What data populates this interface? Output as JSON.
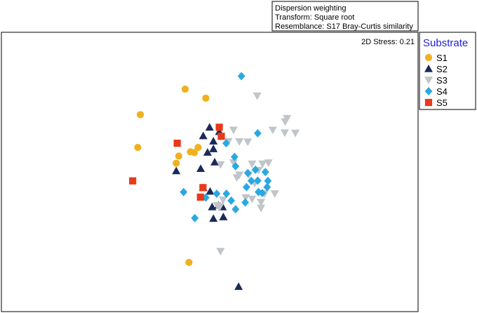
{
  "chart_data": {
    "type": "scatter",
    "title": "",
    "xlabel": "",
    "ylabel": "",
    "info_box": [
      "Dispersion weighting",
      "Transform: Square root",
      "Resemblance: S17 Bray-Curtis similarity"
    ],
    "stress_label": "2D Stress: 0.21",
    "legend_title": "Substrate",
    "legend_title_color": "#1f1fd6",
    "legend_placement": "right",
    "grid": false,
    "xlim": [
      0,
      100
    ],
    "ylim": [
      0,
      100
    ],
    "series": [
      {
        "name": "S1",
        "marker": "circle",
        "color": "#f0b020",
        "points": [
          [
            40.2,
            85.2
          ],
          [
            48.3,
            81.3
          ],
          [
            22.6,
            74.2
          ],
          [
            21.6,
            60.1
          ],
          [
            45.3,
            60.1
          ],
          [
            43.8,
            57.9
          ],
          [
            42.3,
            58.2
          ],
          [
            37.7,
            56.4
          ],
          [
            36.7,
            53.3
          ],
          [
            41.7,
            10.6
          ]
        ]
      },
      {
        "name": "S2",
        "marker": "triangle-up",
        "color": "#1a2a5a",
        "points": [
          [
            49.8,
            68.8
          ],
          [
            47.3,
            65.1
          ],
          [
            53.6,
            66.9
          ],
          [
            51.3,
            62.8
          ],
          [
            51.3,
            59.5
          ],
          [
            49.0,
            58.0
          ],
          [
            46.3,
            51.0
          ],
          [
            36.7,
            50.0
          ],
          [
            51.8,
            53.8
          ],
          [
            47.3,
            42.8
          ],
          [
            50.0,
            41.2
          ],
          [
            53.3,
            35.2
          ],
          [
            54.9,
            34.5
          ],
          [
            55.2,
            30.2
          ],
          [
            51.3,
            29.5
          ],
          [
            50.8,
            34.5
          ],
          [
            61.2,
            0.2
          ]
        ]
      },
      {
        "name": "S3",
        "marker": "triangle-down",
        "color": "#bfc5c9",
        "points": [
          [
            68.5,
            82.3
          ],
          [
            80.2,
            72.6
          ],
          [
            74.6,
            67.6
          ],
          [
            83.5,
            66.3
          ],
          [
            59.2,
            67.6
          ],
          [
            61.5,
            62.6
          ],
          [
            64.8,
            62.5
          ],
          [
            57.2,
            62.7
          ],
          [
            54.1,
            52.7
          ],
          [
            60.5,
            47.1
          ],
          [
            69.0,
            50.3
          ],
          [
            70.6,
            53.0
          ],
          [
            66.5,
            53.0
          ],
          [
            72.9,
            53.5
          ],
          [
            59.2,
            53.5
          ],
          [
            65.2,
            48.3
          ],
          [
            61.5,
            48.3
          ],
          [
            67.5,
            44.6
          ],
          [
            71.4,
            40.2
          ],
          [
            64.0,
            38.5
          ],
          [
            66.5,
            37.9
          ],
          [
            55.1,
            37.5
          ],
          [
            53.8,
            34.5
          ],
          [
            52.8,
            35.1
          ],
          [
            70.0,
            36.5
          ],
          [
            75.4,
            40.2
          ],
          [
            79.5,
            71.2
          ],
          [
            79.3,
            66.4
          ],
          [
            70.0,
            34.0
          ],
          [
            54.1,
            15.4
          ]
        ]
      },
      {
        "name": "S4",
        "marker": "diamond",
        "color": "#2aa8e0",
        "points": [
          [
            62.3,
            90.8
          ],
          [
            68.7,
            66.2
          ],
          [
            56.3,
            61.9
          ],
          [
            59.6,
            56.0
          ],
          [
            60.0,
            52.0
          ],
          [
            64.8,
            49.1
          ],
          [
            67.8,
            50.5
          ],
          [
            71.7,
            49.5
          ],
          [
            64.3,
            43.0
          ],
          [
            66.2,
            45.7
          ],
          [
            72.4,
            43.0
          ],
          [
            72.7,
            45.7
          ],
          [
            69.0,
            40.9
          ],
          [
            70.5,
            40.5
          ],
          [
            63.8,
            36.4
          ],
          [
            56.4,
            40.2
          ],
          [
            52.6,
            40.2
          ],
          [
            60.0,
            33.5
          ],
          [
            58.3,
            37.2
          ],
          [
            48.3,
            38.5
          ],
          [
            39.6,
            40.9
          ],
          [
            44.0,
            29.7
          ],
          [
            68.7,
            45.8
          ]
        ]
      },
      {
        "name": "S5",
        "marker": "square",
        "color": "#e83a1a",
        "points": [
          [
            53.6,
            68.8
          ],
          [
            54.4,
            64.9
          ],
          [
            37.1,
            61.9
          ],
          [
            19.6,
            45.7
          ],
          [
            47.2,
            42.8
          ],
          [
            46.2,
            38.7
          ]
        ]
      }
    ]
  }
}
